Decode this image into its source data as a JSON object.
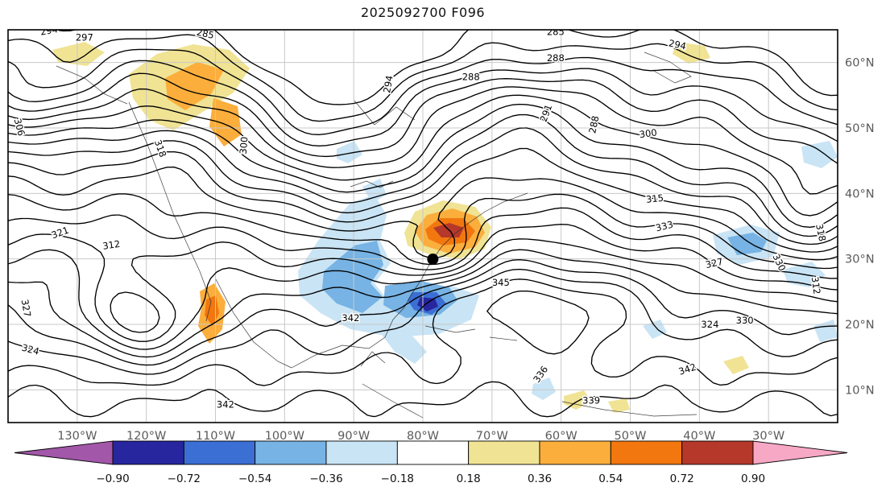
{
  "title": "2025092700 F096",
  "axes": {
    "x_ticks": [
      "130°W",
      "120°W",
      "110°W",
      "100°W",
      "90°W",
      "80°W",
      "70°W",
      "60°W",
      "50°W",
      "40°W",
      "30°W"
    ],
    "y_ticks": [
      "10°N",
      "20°N",
      "30°N",
      "40°N",
      "50°N",
      "60°N"
    ],
    "tick_color": "#5a5a5a"
  },
  "palette": {
    "under": "#A257A8",
    "neg4": "#27269E",
    "neg3": "#3B6FD4",
    "neg2": "#77B3E4",
    "neg1": "#C9E4F5",
    "zero": "#FFFFFF",
    "pos1": "#F0E394",
    "pos2": "#FBAE3C",
    "pos3": "#F2770F",
    "pos4": "#B5382A",
    "over": "#F7A8C4",
    "grid": "#C8C8C8",
    "contour": "#000000",
    "coast": "#2B2B2B"
  },
  "colorbar": {
    "ticks": [
      "−0.90",
      "−0.72",
      "−0.54",
      "−0.36",
      "−0.18",
      "0.18",
      "0.36",
      "0.54",
      "0.72",
      "0.90"
    ],
    "segment_colors": [
      "#27269E",
      "#3B6FD4",
      "#77B3E4",
      "#C9E4F5",
      "#FFFFFF",
      "#F0E394",
      "#FBAE3C",
      "#F2770F",
      "#B5382A"
    ],
    "under_color": "#A257A8",
    "over_color": "#F7A8C4"
  },
  "contours": {
    "interval": 3,
    "levels": [
      285,
      288,
      291,
      294,
      297,
      300,
      303,
      306,
      309,
      312,
      315,
      318,
      321,
      324,
      327,
      330,
      333,
      336,
      339,
      342,
      345
    ],
    "labels": [
      {
        "value": "294",
        "fx": 0.05,
        "fy": 0.01,
        "rot": -10
      },
      {
        "value": "297",
        "fx": 0.092,
        "fy": 0.028,
        "rot": 0
      },
      {
        "value": "285",
        "fx": 0.237,
        "fy": 0.018,
        "rot": 12
      },
      {
        "value": "306",
        "fx": 0.01,
        "fy": 0.25,
        "rot": 75
      },
      {
        "value": "318",
        "fx": 0.18,
        "fy": 0.305,
        "rot": 70
      },
      {
        "value": "294",
        "fx": 0.462,
        "fy": 0.14,
        "rot": -80
      },
      {
        "value": "288",
        "fx": 0.558,
        "fy": 0.128,
        "rot": 0
      },
      {
        "value": "285",
        "fx": 0.66,
        "fy": 0.013,
        "rot": 0
      },
      {
        "value": "288",
        "fx": 0.66,
        "fy": 0.08,
        "rot": 0
      },
      {
        "value": "294",
        "fx": 0.806,
        "fy": 0.046,
        "rot": 12
      },
      {
        "value": "291",
        "fx": 0.652,
        "fy": 0.215,
        "rot": -70
      },
      {
        "value": "288",
        "fx": 0.71,
        "fy": 0.243,
        "rot": -78
      },
      {
        "value": "300",
        "fx": 0.772,
        "fy": 0.272,
        "rot": -8
      },
      {
        "value": "315",
        "fx": 0.78,
        "fy": 0.438,
        "rot": -6
      },
      {
        "value": "333",
        "fx": 0.792,
        "fy": 0.508,
        "rot": -14
      },
      {
        "value": "345",
        "fx": 0.594,
        "fy": 0.652,
        "rot": 0
      },
      {
        "value": "342",
        "fx": 0.413,
        "fy": 0.742,
        "rot": 0
      },
      {
        "value": "342",
        "fx": 0.262,
        "fy": 0.962,
        "rot": 0
      },
      {
        "value": "327",
        "fx": 0.018,
        "fy": 0.71,
        "rot": 80
      },
      {
        "value": "324",
        "fx": 0.026,
        "fy": 0.822,
        "rot": 15
      },
      {
        "value": "312",
        "fx": 0.125,
        "fy": 0.556,
        "rot": -8
      },
      {
        "value": "321",
        "fx": 0.064,
        "fy": 0.524,
        "rot": -20
      },
      {
        "value": "300",
        "fx": 0.288,
        "fy": 0.295,
        "rot": -85
      },
      {
        "value": "327",
        "fx": 0.852,
        "fy": 0.602,
        "rot": -12
      },
      {
        "value": "330",
        "fx": 0.926,
        "fy": 0.596,
        "rot": 65
      },
      {
        "value": "324",
        "fx": 0.846,
        "fy": 0.758,
        "rot": 0
      },
      {
        "value": "330",
        "fx": 0.888,
        "fy": 0.748,
        "rot": 0
      },
      {
        "value": "318",
        "fx": 0.976,
        "fy": 0.518,
        "rot": 78
      },
      {
        "value": "312",
        "fx": 0.97,
        "fy": 0.652,
        "rot": 82
      },
      {
        "value": "342",
        "fx": 0.82,
        "fy": 0.872,
        "rot": -18
      },
      {
        "value": "339",
        "fx": 0.703,
        "fy": 0.952,
        "rot": 0
      },
      {
        "value": "336",
        "fx": 0.645,
        "fy": 0.882,
        "rot": -55
      }
    ]
  },
  "marker": {
    "fx": 0.512,
    "fy": 0.584,
    "color": "#000000"
  },
  "chart_data": {
    "type": "heatmap",
    "plot_style": "filled-contour anomaly shading with overlaid black line contours on a latitude-longitude map",
    "title": "2025092700 F096",
    "x_tick_labels": [
      "130°W",
      "120°W",
      "110°W",
      "100°W",
      "90°W",
      "80°W",
      "70°W",
      "60°W",
      "50°W",
      "40°W",
      "30°W"
    ],
    "y_tick_labels": [
      "10°N",
      "20°N",
      "30°N",
      "40°N",
      "50°N",
      "60°N"
    ],
    "grid": true,
    "line_contour_interval": 3,
    "line_contour_labeled_levels": [
      285,
      288,
      291,
      294,
      297,
      300,
      306,
      312,
      315,
      318,
      321,
      324,
      327,
      330,
      333,
      336,
      339,
      342,
      345
    ],
    "shading_colorbar": {
      "orientation": "horizontal",
      "extend": "both",
      "tick_values": [
        -0.9,
        -0.72,
        -0.54,
        -0.36,
        -0.18,
        0.18,
        0.36,
        0.54,
        0.72,
        0.9
      ],
      "segment_colors": [
        "#27269E",
        "#3B6FD4",
        "#77B3E4",
        "#C9E4F5",
        "#FFFFFF",
        "#F0E394",
        "#FBAE3C",
        "#F2770F",
        "#B5382A"
      ],
      "under_arrow_color": "#A257A8",
      "over_arrow_color": "#F7A8C4"
    },
    "marker": {
      "shape": "filled-circle",
      "color": "#000000",
      "approx_lon_deg_west": 79,
      "approx_lat_deg_north": 31
    },
    "notable_shaded_features": [
      {
        "sign": "positive",
        "color": "orange-red core",
        "approx_location": "off the southeastern U.S. coast near 75°W 35°N"
      },
      {
        "sign": "negative",
        "color": "blue with dark-blue core",
        "approx_location": "Gulf of Mexico / southeastern U.S. near 82°W 27°N"
      },
      {
        "sign": "positive",
        "color": "yellow-orange",
        "approx_location": "western Canada / Pacific Northwest"
      },
      {
        "sign": "positive",
        "color": "orange",
        "approx_location": "west coast of Mexico near 110°W 22°N"
      },
      {
        "sign": "negative",
        "color": "light blue patches",
        "approx_location": "central subtropical Atlantic near 40°W 30°N"
      }
    ]
  }
}
